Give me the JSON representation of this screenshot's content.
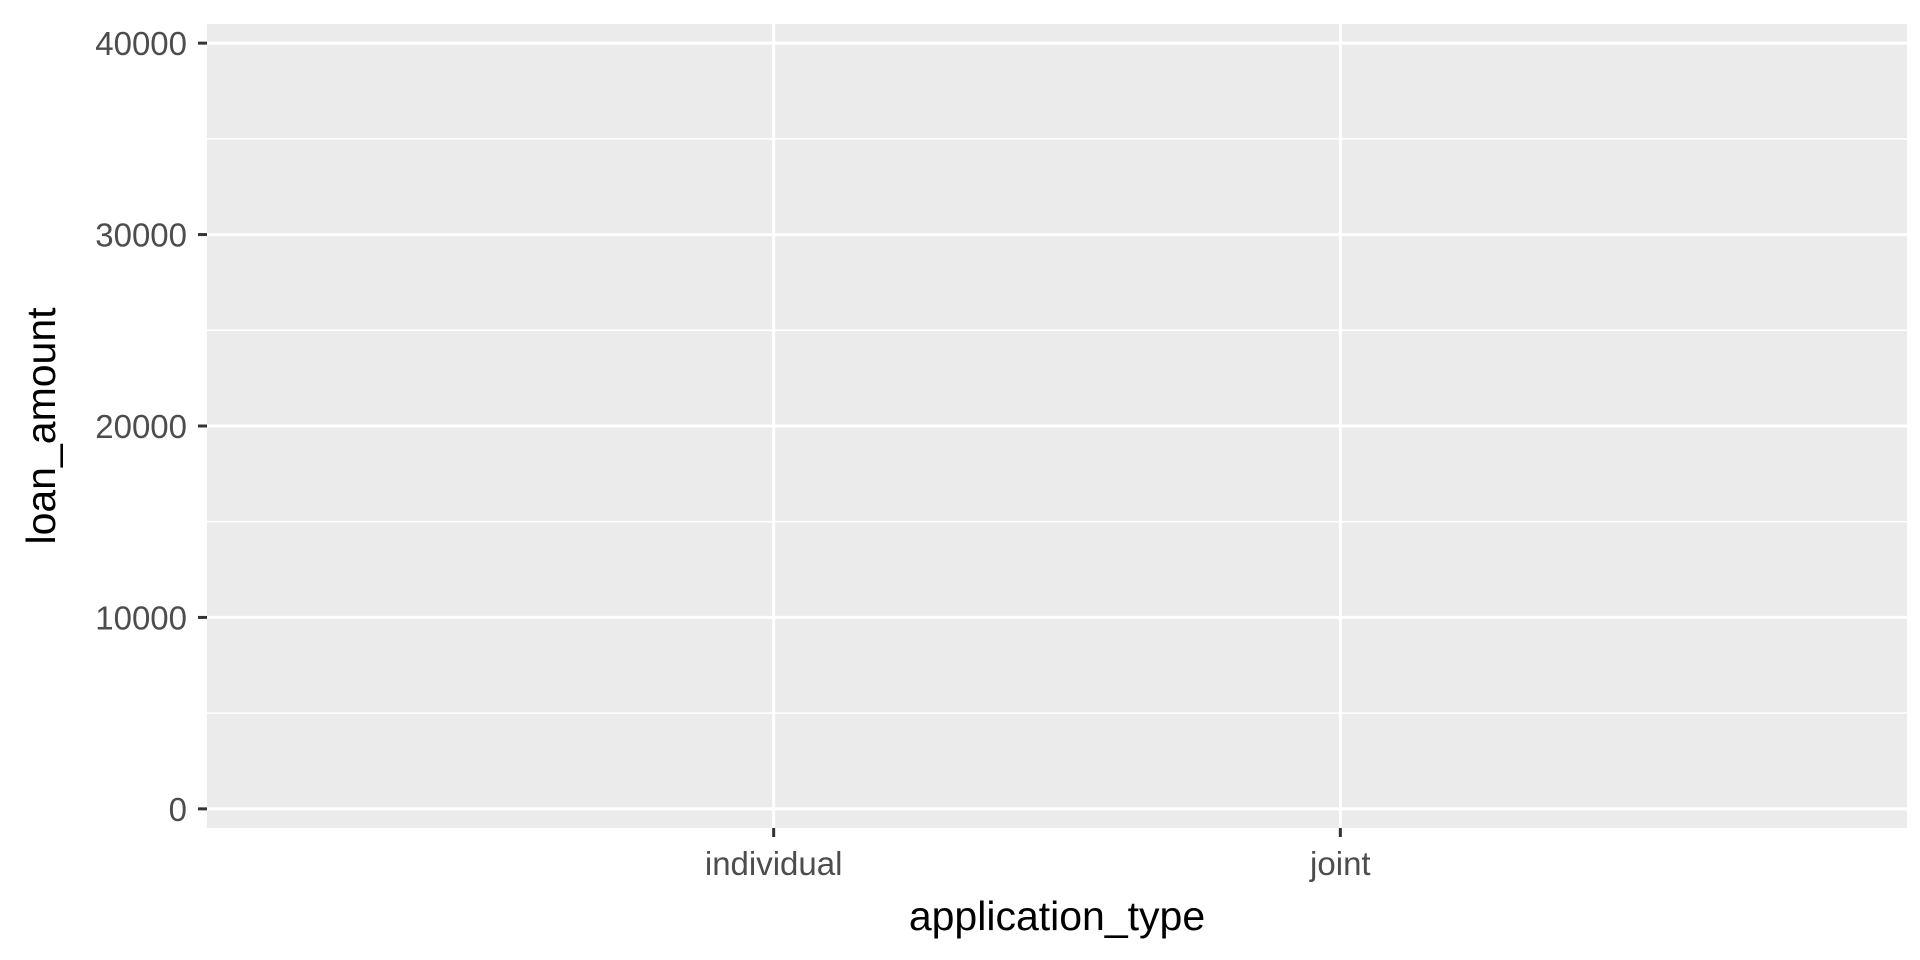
{
  "chart_data": {
    "type": "scatter",
    "title": "",
    "xlabel": "application_type",
    "ylabel": "loan_amount",
    "categories": [
      "individual",
      "joint"
    ],
    "ylim": [
      -1000,
      41000
    ],
    "y_ticks": [
      0,
      10000,
      20000,
      30000,
      40000
    ],
    "y_tick_labels": [
      "0",
      "10000",
      "20000",
      "30000",
      "40000"
    ],
    "series": [],
    "grid": true,
    "legend": "none",
    "colors": {
      "panel_background": "#ebebeb",
      "grid_major": "#ffffff",
      "grid_minor": "#ffffff",
      "tick_mark": "#333333",
      "tick_text": "#4d4d4d",
      "axis_title": "#000000"
    }
  }
}
